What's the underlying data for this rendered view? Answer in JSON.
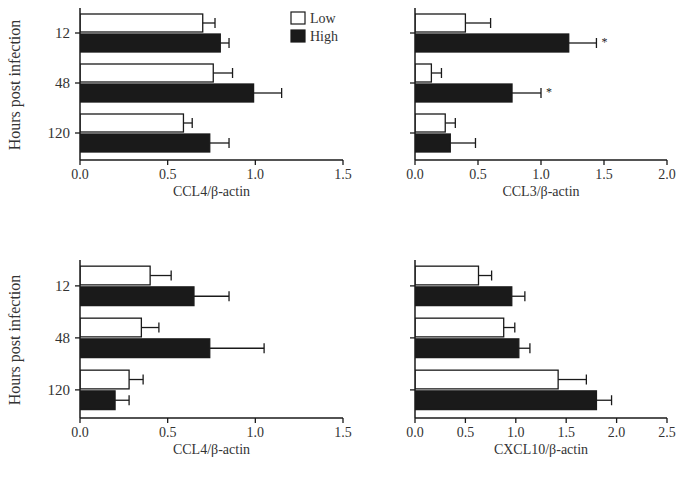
{
  "chart_data": [
    {
      "type": "bar",
      "orientation": "horizontal",
      "x_label": "CCL4/β-actin",
      "y_label": "Hours post infection",
      "categories": [
        "12",
        "48",
        "120"
      ],
      "xlim": [
        0,
        1.5
      ],
      "xticks": [
        {
          "value": 0,
          "label": "0.0"
        },
        0.5,
        {
          "value": 1,
          "label": "1.0"
        },
        1.5
      ],
      "legend": "top-right",
      "series": [
        {
          "name": "Low",
          "color": "#ffffff",
          "values": [
            0.7,
            0.76,
            0.59
          ],
          "errors": [
            0.07,
            0.11,
            0.05
          ]
        },
        {
          "name": "High",
          "color": "#1a1a1a",
          "values": [
            0.8,
            0.99,
            0.74
          ],
          "errors": [
            0.05,
            0.16,
            0.11
          ]
        }
      ]
    },
    {
      "type": "bar",
      "orientation": "horizontal",
      "x_label": "CCL3/β-actin",
      "categories": [
        null,
        null,
        null
      ],
      "tick_labels": "x",
      "xlim": [
        0,
        2
      ],
      "xticks": [
        {
          "value": 0,
          "label": "0.0"
        },
        0.5,
        {
          "value": 1,
          "label": "1.0"
        },
        1.5,
        {
          "value": 2,
          "label": "2.0"
        }
      ],
      "series": [
        {
          "color": "#ffffff",
          "values": [
            0.4,
            0.13,
            0.24
          ],
          "errors": [
            0.2,
            0.08,
            0.08
          ]
        },
        {
          "color": "#1a1a1a",
          "values": [
            1.22,
            0.77,
            0.28
          ],
          "errors": [
            0.22,
            0.23,
            0.2
          ]
        }
      ],
      "annotations": [
        {
          "text": "*",
          "series": 1,
          "category": 0
        },
        {
          "text": "*",
          "series": 1,
          "category": 1
        }
      ]
    },
    {
      "type": "bar",
      "orientation": "horizontal",
      "x_label": "CCL4/β-actin",
      "y_label": "Hours post infection",
      "categories": [
        "12",
        "48",
        "120"
      ],
      "xlim": [
        0,
        1.5
      ],
      "xticks": [
        {
          "value": 0,
          "label": "0.0"
        },
        0.5,
        {
          "value": 1,
          "label": "1.0"
        },
        1.5
      ],
      "series": [
        {
          "color": "#ffffff",
          "values": [
            0.4,
            0.35,
            0.28
          ],
          "errors": [
            0.12,
            0.1,
            0.08
          ]
        },
        {
          "color": "#1a1a1a",
          "values": [
            0.65,
            0.74,
            0.2
          ],
          "errors": [
            0.2,
            0.31,
            0.08
          ]
        }
      ]
    },
    {
      "type": "bar",
      "orientation": "horizontal",
      "x_label": "CXCL10/β-actin",
      "categories": [
        null,
        null,
        null
      ],
      "tick_labels": "x",
      "xlim": [
        0,
        2.5
      ],
      "xticks": [
        {
          "value": 0,
          "label": "0.0"
        },
        0.5,
        {
          "value": 1,
          "label": "1.0"
        },
        1.5,
        {
          "value": 2,
          "label": "2.0"
        },
        2.5
      ],
      "series": [
        {
          "color": "#ffffff",
          "values": [
            0.63,
            0.88,
            1.42
          ],
          "errors": [
            0.13,
            0.11,
            0.28
          ]
        },
        {
          "color": "#1a1a1a",
          "values": [
            0.96,
            1.03,
            1.8
          ],
          "errors": [
            0.13,
            0.11,
            0.15
          ]
        }
      ]
    }
  ]
}
